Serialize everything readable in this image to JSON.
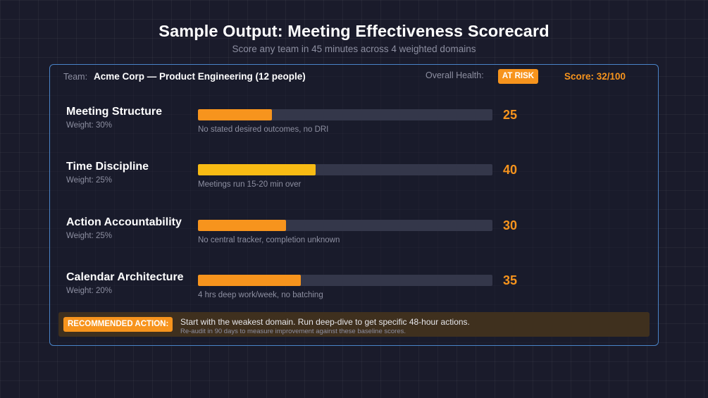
{
  "header": {
    "title": "Sample Output: Meeting Effectiveness Scorecard",
    "subtitle": "Score any team in 45 minutes across 4 weighted domains"
  },
  "summary": {
    "team_label": "Team:",
    "team_name": "Acme Corp — Product Engineering (12 people)",
    "health_label": "Overall Health:",
    "health_status": "AT RISK",
    "score_text": "Score: 32/100"
  },
  "domains": [
    {
      "name": "Meeting Structure",
      "weight": "Weight: 30%",
      "score": 25,
      "note": "No stated desired outcomes, no DRI",
      "color": "#f7941d"
    },
    {
      "name": "Time Discipline",
      "weight": "Weight: 25%",
      "score": 40,
      "note": "Meetings run 15-20 min over",
      "color": "#f8bb14"
    },
    {
      "name": "Action Accountability",
      "weight": "Weight: 25%",
      "score": 30,
      "note": "No central tracker, completion unknown",
      "color": "#f7941d"
    },
    {
      "name": "Calendar Architecture",
      "weight": "Weight: 20%",
      "score": 35,
      "note": "4 hrs deep work/week, no batching",
      "color": "#f7941d"
    }
  ],
  "score_max": 100,
  "recommendation": {
    "label": "RECOMMENDED ACTION:",
    "main": "Start with the weakest domain. Run deep-dive to get specific 48-hour actions.",
    "sub": "Re-audit in 90 days to measure improvement against these baseline scores."
  },
  "colors": {
    "accent": "#f7941d",
    "accent_yellow": "#f8bb14",
    "card_border": "#4a84c8",
    "background": "#1a1b2b"
  }
}
